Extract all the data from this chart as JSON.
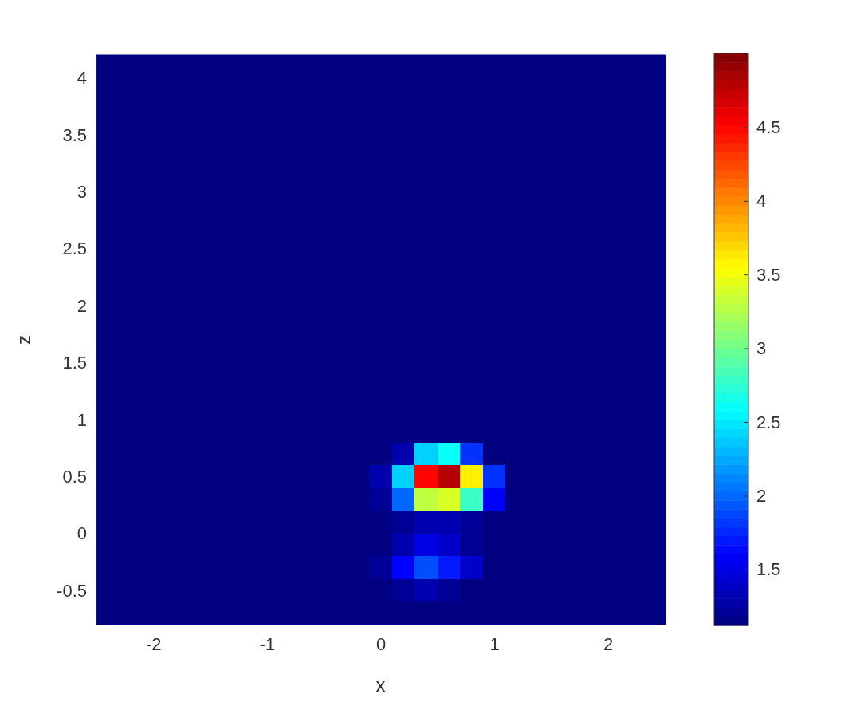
{
  "chart_data": {
    "type": "heatmap",
    "xlabel": "x",
    "ylabel": "z",
    "x": [
      -2.4,
      -2.2,
      -2.0,
      -1.8,
      -1.6,
      -1.4,
      -1.2,
      -1.0,
      -0.8,
      -0.6,
      -0.4,
      -0.2,
      0.0,
      0.2,
      0.4,
      0.6,
      0.8,
      1.0,
      1.2,
      1.4,
      1.6,
      1.8,
      2.0,
      2.2,
      2.4
    ],
    "y": [
      4.1,
      3.9,
      3.7,
      3.5,
      3.3,
      3.1,
      2.9,
      2.7,
      2.5,
      2.3,
      2.1,
      1.9,
      1.7,
      1.5,
      1.3,
      1.1,
      0.9,
      0.7,
      0.5,
      0.3,
      0.1,
      -0.1,
      -0.3,
      -0.5,
      -0.7
    ],
    "xlim": [
      -2.5,
      2.5
    ],
    "xticks": [
      -2,
      -1,
      0,
      1,
      2
    ],
    "ylim": [
      -0.8,
      4.2
    ],
    "yticks": [
      -0.5,
      0,
      0.5,
      1,
      1.5,
      2,
      2.5,
      3,
      3.5,
      4
    ],
    "clim": [
      1.12,
      5.0
    ],
    "cticks": [
      1.5,
      2,
      2.5,
      3,
      3.5,
      4,
      4.5
    ],
    "cells": [
      [
        1.12,
        1.12,
        1.12,
        1.12,
        1.12,
        1.12,
        1.12,
        1.12,
        1.12,
        1.12,
        1.12,
        1.12,
        1.12,
        1.12,
        1.12,
        1.12,
        1.12,
        1.12,
        1.12,
        1.12,
        1.12,
        1.12,
        1.12,
        1.12,
        1.12
      ],
      [
        1.12,
        1.12,
        1.12,
        1.12,
        1.12,
        1.12,
        1.12,
        1.12,
        1.12,
        1.12,
        1.12,
        1.12,
        1.12,
        1.12,
        1.12,
        1.12,
        1.12,
        1.12,
        1.12,
        1.12,
        1.12,
        1.12,
        1.12,
        1.12,
        1.12
      ],
      [
        1.12,
        1.12,
        1.12,
        1.12,
        1.12,
        1.12,
        1.12,
        1.12,
        1.12,
        1.12,
        1.12,
        1.12,
        1.12,
        1.12,
        1.12,
        1.12,
        1.12,
        1.12,
        1.12,
        1.12,
        1.12,
        1.12,
        1.12,
        1.12,
        1.12
      ],
      [
        1.12,
        1.12,
        1.12,
        1.12,
        1.12,
        1.12,
        1.12,
        1.12,
        1.12,
        1.12,
        1.12,
        1.12,
        1.12,
        1.12,
        1.12,
        1.12,
        1.12,
        1.12,
        1.12,
        1.12,
        1.12,
        1.12,
        1.12,
        1.12,
        1.12
      ],
      [
        1.12,
        1.12,
        1.12,
        1.12,
        1.12,
        1.12,
        1.12,
        1.12,
        1.12,
        1.12,
        1.12,
        1.12,
        1.12,
        1.12,
        1.12,
        1.12,
        1.12,
        1.12,
        1.12,
        1.12,
        1.12,
        1.12,
        1.12,
        1.12,
        1.12
      ],
      [
        1.12,
        1.12,
        1.12,
        1.12,
        1.12,
        1.12,
        1.12,
        1.12,
        1.12,
        1.12,
        1.12,
        1.12,
        1.12,
        1.12,
        1.12,
        1.12,
        1.12,
        1.12,
        1.12,
        1.12,
        1.12,
        1.12,
        1.12,
        1.12,
        1.12
      ],
      [
        1.12,
        1.12,
        1.12,
        1.12,
        1.12,
        1.12,
        1.12,
        1.12,
        1.12,
        1.12,
        1.12,
        1.12,
        1.12,
        1.12,
        1.12,
        1.12,
        1.12,
        1.12,
        1.12,
        1.12,
        1.12,
        1.12,
        1.12,
        1.12,
        1.12
      ],
      [
        1.12,
        1.12,
        1.12,
        1.12,
        1.12,
        1.12,
        1.12,
        1.12,
        1.12,
        1.12,
        1.12,
        1.12,
        1.12,
        1.12,
        1.12,
        1.12,
        1.12,
        1.12,
        1.12,
        1.12,
        1.12,
        1.12,
        1.12,
        1.12,
        1.12
      ],
      [
        1.12,
        1.12,
        1.12,
        1.12,
        1.12,
        1.12,
        1.12,
        1.12,
        1.12,
        1.12,
        1.12,
        1.12,
        1.12,
        1.12,
        1.12,
        1.12,
        1.12,
        1.12,
        1.12,
        1.12,
        1.12,
        1.12,
        1.12,
        1.12,
        1.12
      ],
      [
        1.12,
        1.12,
        1.12,
        1.12,
        1.12,
        1.12,
        1.12,
        1.12,
        1.12,
        1.12,
        1.12,
        1.12,
        1.12,
        1.12,
        1.12,
        1.12,
        1.12,
        1.12,
        1.12,
        1.12,
        1.12,
        1.12,
        1.12,
        1.12,
        1.12
      ],
      [
        1.12,
        1.12,
        1.12,
        1.12,
        1.12,
        1.12,
        1.12,
        1.12,
        1.12,
        1.12,
        1.12,
        1.12,
        1.12,
        1.12,
        1.12,
        1.12,
        1.12,
        1.12,
        1.12,
        1.12,
        1.12,
        1.12,
        1.12,
        1.12,
        1.12
      ],
      [
        1.12,
        1.12,
        1.12,
        1.12,
        1.12,
        1.12,
        1.12,
        1.12,
        1.12,
        1.12,
        1.12,
        1.12,
        1.12,
        1.12,
        1.12,
        1.12,
        1.12,
        1.12,
        1.12,
        1.12,
        1.12,
        1.12,
        1.12,
        1.12,
        1.12
      ],
      [
        1.12,
        1.12,
        1.12,
        1.12,
        1.12,
        1.12,
        1.12,
        1.12,
        1.12,
        1.12,
        1.12,
        1.12,
        1.12,
        1.12,
        1.12,
        1.12,
        1.12,
        1.12,
        1.12,
        1.12,
        1.12,
        1.12,
        1.12,
        1.12,
        1.12
      ],
      [
        1.12,
        1.12,
        1.12,
        1.12,
        1.12,
        1.12,
        1.12,
        1.12,
        1.12,
        1.12,
        1.12,
        1.12,
        1.12,
        1.12,
        1.12,
        1.12,
        1.12,
        1.12,
        1.12,
        1.12,
        1.12,
        1.12,
        1.12,
        1.12,
        1.12
      ],
      [
        1.12,
        1.12,
        1.12,
        1.12,
        1.12,
        1.12,
        1.12,
        1.12,
        1.12,
        1.12,
        1.12,
        1.12,
        1.12,
        1.12,
        1.12,
        1.12,
        1.12,
        1.12,
        1.12,
        1.12,
        1.12,
        1.12,
        1.12,
        1.12,
        1.12
      ],
      [
        1.12,
        1.12,
        1.12,
        1.12,
        1.12,
        1.12,
        1.12,
        1.12,
        1.12,
        1.12,
        1.12,
        1.12,
        1.12,
        1.12,
        1.12,
        1.12,
        1.12,
        1.12,
        1.12,
        1.12,
        1.12,
        1.12,
        1.12,
        1.12,
        1.12
      ],
      [
        1.12,
        1.12,
        1.12,
        1.12,
        1.12,
        1.12,
        1.12,
        1.12,
        1.12,
        1.12,
        1.12,
        1.12,
        1.12,
        1.12,
        1.12,
        1.12,
        1.12,
        1.12,
        1.12,
        1.12,
        1.12,
        1.12,
        1.12,
        1.12,
        1.12
      ],
      [
        1.12,
        1.12,
        1.12,
        1.12,
        1.12,
        1.12,
        1.12,
        1.12,
        1.12,
        1.12,
        1.12,
        1.12,
        1.12,
        1.3,
        2.4,
        2.6,
        1.8,
        1.12,
        1.12,
        1.12,
        1.12,
        1.12,
        1.12,
        1.12,
        1.12
      ],
      [
        1.12,
        1.12,
        1.12,
        1.12,
        1.12,
        1.12,
        1.12,
        1.12,
        1.12,
        1.12,
        1.12,
        1.12,
        1.3,
        2.4,
        4.5,
        4.8,
        3.6,
        1.8,
        1.12,
        1.12,
        1.12,
        1.12,
        1.12,
        1.12,
        1.12
      ],
      [
        1.12,
        1.12,
        1.12,
        1.12,
        1.12,
        1.12,
        1.12,
        1.12,
        1.12,
        1.12,
        1.12,
        1.12,
        1.2,
        2.0,
        3.3,
        3.4,
        2.8,
        1.6,
        1.12,
        1.12,
        1.12,
        1.12,
        1.12,
        1.12,
        1.12
      ],
      [
        1.12,
        1.12,
        1.12,
        1.12,
        1.12,
        1.12,
        1.12,
        1.12,
        1.12,
        1.12,
        1.12,
        1.12,
        1.12,
        1.2,
        1.3,
        1.3,
        1.2,
        1.12,
        1.12,
        1.12,
        1.12,
        1.12,
        1.12,
        1.12,
        1.12
      ],
      [
        1.12,
        1.12,
        1.12,
        1.12,
        1.12,
        1.12,
        1.12,
        1.12,
        1.12,
        1.12,
        1.12,
        1.12,
        1.12,
        1.3,
        1.5,
        1.4,
        1.2,
        1.12,
        1.12,
        1.12,
        1.12,
        1.12,
        1.12,
        1.12,
        1.12
      ],
      [
        1.12,
        1.12,
        1.12,
        1.12,
        1.12,
        1.12,
        1.12,
        1.12,
        1.12,
        1.12,
        1.12,
        1.12,
        1.2,
        1.6,
        1.9,
        1.7,
        1.4,
        1.12,
        1.12,
        1.12,
        1.12,
        1.12,
        1.12,
        1.12,
        1.12
      ],
      [
        1.12,
        1.12,
        1.12,
        1.12,
        1.12,
        1.12,
        1.12,
        1.12,
        1.12,
        1.12,
        1.12,
        1.12,
        1.12,
        1.2,
        1.3,
        1.2,
        1.12,
        1.12,
        1.12,
        1.12,
        1.12,
        1.12,
        1.12,
        1.12,
        1.12
      ],
      [
        1.12,
        1.12,
        1.12,
        1.12,
        1.12,
        1.12,
        1.12,
        1.12,
        1.12,
        1.12,
        1.12,
        1.12,
        1.12,
        1.12,
        1.12,
        1.12,
        1.12,
        1.12,
        1.12,
        1.12,
        1.12,
        1.12,
        1.12,
        1.12,
        1.12
      ]
    ]
  }
}
